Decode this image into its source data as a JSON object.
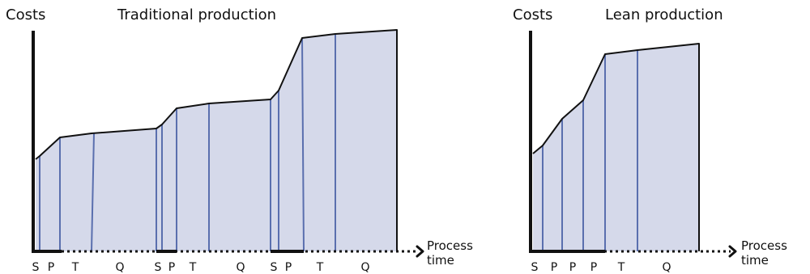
{
  "panels": [
    {
      "id": "traditional",
      "title": "Traditional production",
      "ylabel": "Costs",
      "xlabel_line1": "Process",
      "xlabel_line2": "time",
      "segments": [
        "S",
        "P",
        "T",
        "Q",
        "S",
        "P",
        "T",
        "Q",
        "S",
        "P",
        "T",
        "Q"
      ]
    },
    {
      "id": "lean",
      "title": "Lean production",
      "ylabel": "Costs",
      "xlabel_line1": "Process",
      "xlabel_line2": "time",
      "segments": [
        "S",
        "P",
        "P",
        "P",
        "T",
        "Q"
      ]
    }
  ],
  "colors": {
    "fill": "#d5d9ea",
    "divider": "#5a6fae",
    "outline": "#111111"
  }
}
